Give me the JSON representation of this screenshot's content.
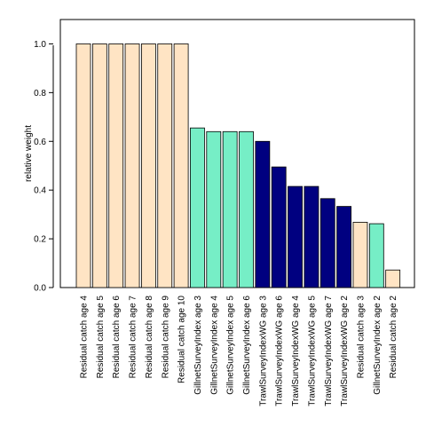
{
  "chart_data": {
    "type": "bar",
    "title": "",
    "xlabel": "",
    "ylabel": "relative weight",
    "ylim": [
      0,
      1.1
    ],
    "yticks": [
      "0.0",
      "0.2",
      "0.4",
      "0.6",
      "0.8",
      "1.0"
    ],
    "grid": false,
    "legend": "none",
    "categories": [
      "Residual catch age 4",
      "Residual catch age 5",
      "Residual catch age 6",
      "Residual catch age 7",
      "Residual catch age 8",
      "Residual catch age 9",
      "Residual catch age 10",
      "GillnetSurveyIndex age 3",
      "GillnetSurveyIndex age 4",
      "GillnetSurveyIndex age 5",
      "GillnetSurveyIndex age 6",
      "TrawlSurveyIndexWG age 3",
      "TrawlSurveyIndexWG age 6",
      "TrawlSurveyIndexWG age 4",
      "TrawlSurveyIndexWG age 5",
      "TrawlSurveyIndexWG age 7",
      "TrawlSurveyIndexWG age 2",
      "Residual catch age 3",
      "GillnetSurveyIndex age 2",
      "Residual catch age 2"
    ],
    "values": [
      1.0,
      1.0,
      1.0,
      1.0,
      1.0,
      1.0,
      1.0,
      0.655,
      0.64,
      0.64,
      0.64,
      0.6,
      0.495,
      0.415,
      0.415,
      0.365,
      0.333,
      0.268,
      0.262,
      0.072
    ],
    "groups": [
      "residual",
      "residual",
      "residual",
      "residual",
      "residual",
      "residual",
      "residual",
      "gillnet",
      "gillnet",
      "gillnet",
      "gillnet",
      "trawl",
      "trawl",
      "trawl",
      "trawl",
      "trawl",
      "trawl",
      "residual",
      "gillnet",
      "residual"
    ],
    "colors": {
      "residual": "#ffe4c4",
      "gillnet": "#76eec6",
      "trawl": "#000080",
      "bar_border": "#000000"
    }
  }
}
